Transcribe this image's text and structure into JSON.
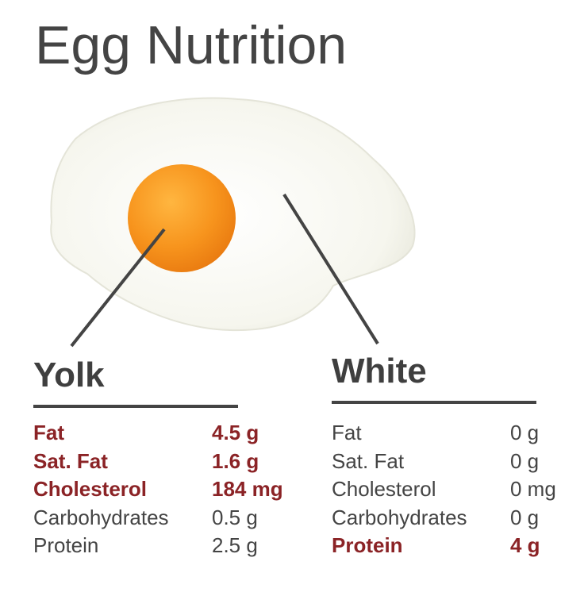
{
  "title": "Egg Nutrition",
  "colors": {
    "text": "#444444",
    "highlight": "#8b2326",
    "yolk": "#f7941d",
    "white": "#f8f8f2"
  },
  "yolk": {
    "heading": "Yolk",
    "rows": [
      {
        "label": "Fat",
        "value": "4.5 g",
        "highlight": true
      },
      {
        "label": "Sat. Fat",
        "value": "1.6 g",
        "highlight": true
      },
      {
        "label": "Cholesterol",
        "value": "184 mg",
        "highlight": true
      },
      {
        "label": "Carbohydrates",
        "value": "0.5 g",
        "highlight": false
      },
      {
        "label": "Protein",
        "value": "2.5 g",
        "highlight": false
      }
    ]
  },
  "white": {
    "heading": "White",
    "rows": [
      {
        "label": "Fat",
        "value": "0 g",
        "highlight": false
      },
      {
        "label": "Sat. Fat",
        "value": "0 g",
        "highlight": false
      },
      {
        "label": "Cholesterol",
        "value": "0 mg",
        "highlight": false
      },
      {
        "label": "Carbohydrates",
        "value": "0 g",
        "highlight": false
      },
      {
        "label": "Protein",
        "value": "4 g",
        "highlight": true
      }
    ]
  }
}
